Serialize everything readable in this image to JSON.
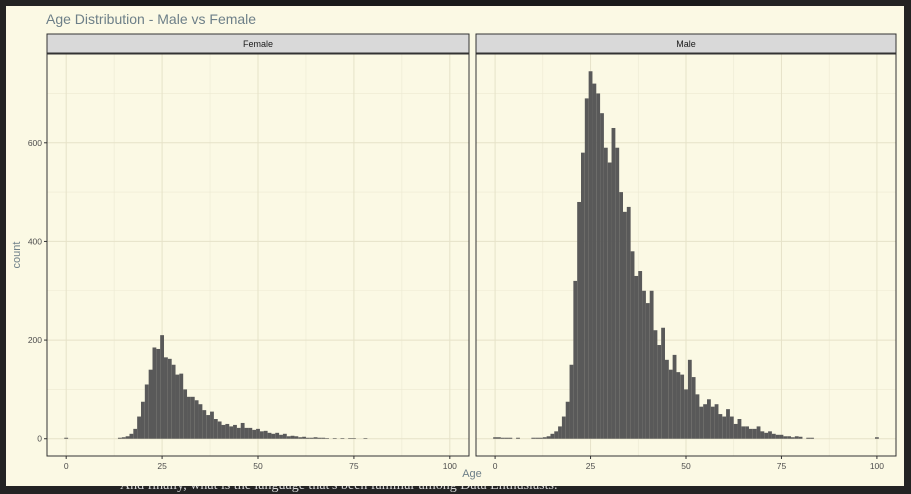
{
  "background_text": "And finally, what is the language that's been familiar among Data Enthusiasts.",
  "chart_data": {
    "type": "bar",
    "title": "Age Distribution - Male vs Female",
    "xlabel": "Age",
    "ylabel": "count",
    "xlim": [
      -5,
      105
    ],
    "ylim": [
      -35,
      780
    ],
    "x_ticks": [
      0,
      25,
      50,
      75,
      100
    ],
    "y_ticks": [
      0,
      200,
      400,
      600
    ],
    "grid": true,
    "bar_color": "#595959",
    "panels": [
      {
        "name": "Female",
        "bins": [
          [
            0,
            2
          ],
          [
            14,
            2
          ],
          [
            15,
            3
          ],
          [
            16,
            5
          ],
          [
            17,
            10
          ],
          [
            18,
            20
          ],
          [
            19,
            45
          ],
          [
            20,
            75
          ],
          [
            21,
            110
          ],
          [
            22,
            140
          ],
          [
            23,
            185
          ],
          [
            24,
            182
          ],
          [
            25,
            210
          ],
          [
            26,
            165
          ],
          [
            27,
            162
          ],
          [
            28,
            150
          ],
          [
            29,
            130
          ],
          [
            30,
            132
          ],
          [
            31,
            100
          ],
          [
            32,
            85
          ],
          [
            33,
            85
          ],
          [
            34,
            78
          ],
          [
            35,
            70
          ],
          [
            36,
            58
          ],
          [
            37,
            48
          ],
          [
            38,
            55
          ],
          [
            39,
            40
          ],
          [
            40,
            35
          ],
          [
            41,
            28
          ],
          [
            42,
            30
          ],
          [
            43,
            25
          ],
          [
            44,
            28
          ],
          [
            45,
            22
          ],
          [
            46,
            32
          ],
          [
            47,
            22
          ],
          [
            48,
            22
          ],
          [
            49,
            18
          ],
          [
            50,
            20
          ],
          [
            51,
            15
          ],
          [
            52,
            16
          ],
          [
            53,
            12
          ],
          [
            54,
            10
          ],
          [
            55,
            12
          ],
          [
            56,
            8
          ],
          [
            57,
            10
          ],
          [
            58,
            5
          ],
          [
            59,
            6
          ],
          [
            60,
            5
          ],
          [
            61,
            3
          ],
          [
            62,
            4
          ],
          [
            63,
            2
          ],
          [
            64,
            2
          ],
          [
            65,
            3
          ],
          [
            66,
            2
          ],
          [
            67,
            2
          ],
          [
            68,
            1
          ],
          [
            70,
            1
          ],
          [
            72,
            1
          ],
          [
            74,
            1
          ],
          [
            75,
            1
          ],
          [
            78,
            1
          ]
        ]
      },
      {
        "name": "Male",
        "bins": [
          [
            0,
            3
          ],
          [
            1,
            3
          ],
          [
            2,
            2
          ],
          [
            3,
            2
          ],
          [
            4,
            2
          ],
          [
            6,
            2
          ],
          [
            10,
            2
          ],
          [
            11,
            2
          ],
          [
            12,
            2
          ],
          [
            13,
            3
          ],
          [
            14,
            5
          ],
          [
            15,
            10
          ],
          [
            16,
            15
          ],
          [
            17,
            25
          ],
          [
            18,
            45
          ],
          [
            19,
            75
          ],
          [
            20,
            150
          ],
          [
            21,
            320
          ],
          [
            22,
            480
          ],
          [
            23,
            580
          ],
          [
            24,
            690
          ],
          [
            25,
            745
          ],
          [
            26,
            720
          ],
          [
            27,
            700
          ],
          [
            28,
            660
          ],
          [
            29,
            590
          ],
          [
            30,
            560
          ],
          [
            31,
            630
          ],
          [
            32,
            590
          ],
          [
            33,
            500
          ],
          [
            34,
            460
          ],
          [
            35,
            470
          ],
          [
            36,
            380
          ],
          [
            37,
            330
          ],
          [
            38,
            340
          ],
          [
            39,
            300
          ],
          [
            40,
            275
          ],
          [
            41,
            300
          ],
          [
            42,
            220
          ],
          [
            43,
            190
          ],
          [
            44,
            225
          ],
          [
            45,
            160
          ],
          [
            46,
            140
          ],
          [
            47,
            170
          ],
          [
            48,
            135
          ],
          [
            49,
            130
          ],
          [
            50,
            100
          ],
          [
            51,
            160
          ],
          [
            52,
            125
          ],
          [
            53,
            90
          ],
          [
            54,
            65
          ],
          [
            55,
            70
          ],
          [
            56,
            80
          ],
          [
            57,
            65
          ],
          [
            58,
            70
          ],
          [
            59,
            50
          ],
          [
            60,
            45
          ],
          [
            61,
            60
          ],
          [
            62,
            45
          ],
          [
            63,
            30
          ],
          [
            64,
            40
          ],
          [
            65,
            25
          ],
          [
            66,
            25
          ],
          [
            67,
            20
          ],
          [
            68,
            20
          ],
          [
            69,
            25
          ],
          [
            70,
            15
          ],
          [
            71,
            12
          ],
          [
            72,
            15
          ],
          [
            73,
            10
          ],
          [
            74,
            8
          ],
          [
            75,
            8
          ],
          [
            76,
            5
          ],
          [
            77,
            5
          ],
          [
            78,
            3
          ],
          [
            79,
            5
          ],
          [
            80,
            4
          ],
          [
            82,
            2
          ],
          [
            83,
            2
          ],
          [
            100,
            3
          ]
        ]
      }
    ]
  }
}
